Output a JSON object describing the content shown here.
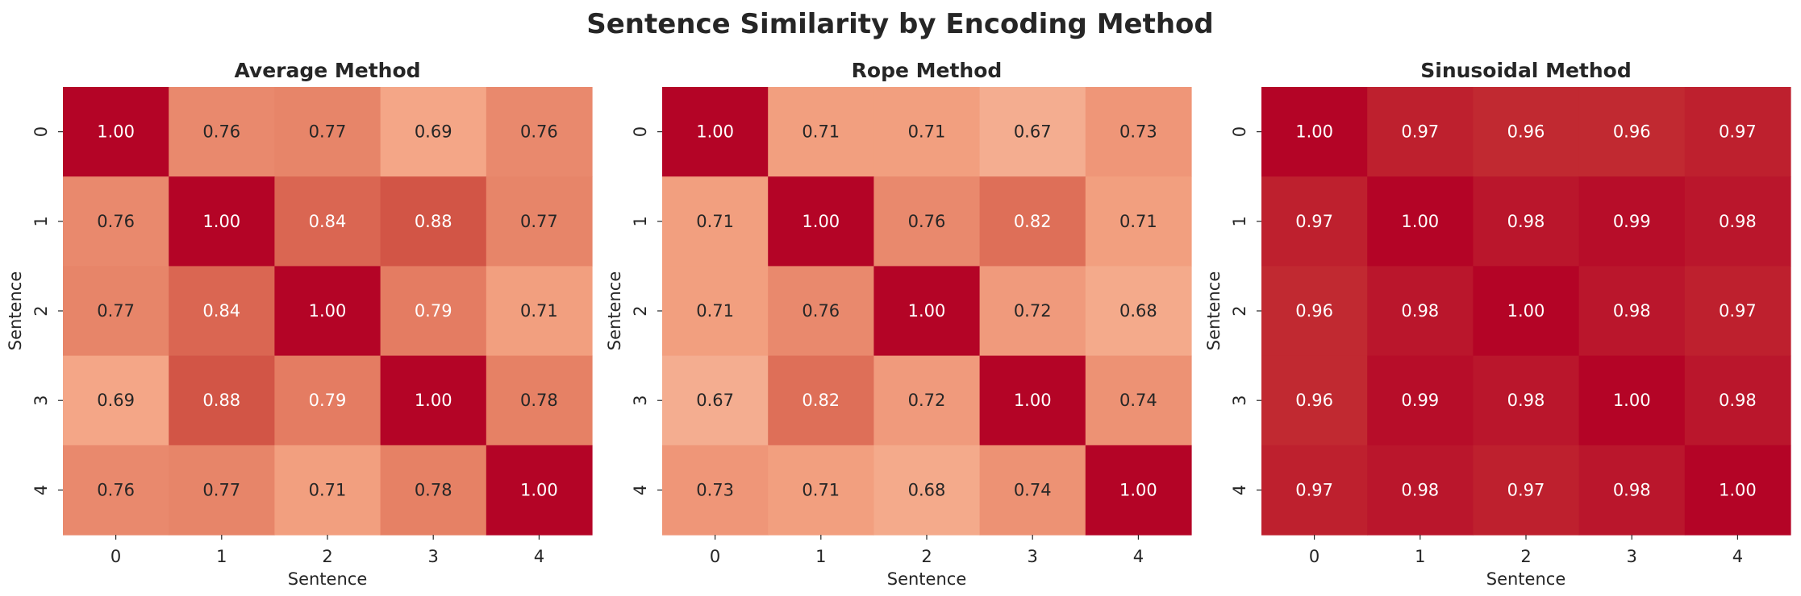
{
  "figure": {
    "title": "Sentence Similarity by Encoding Method"
  },
  "chart_data": [
    {
      "type": "heatmap",
      "title": "Average Method",
      "xlabel": "Sentence",
      "ylabel": "Sentence",
      "x_ticks": [
        "0",
        "1",
        "2",
        "3",
        "4"
      ],
      "y_ticks": [
        "0",
        "1",
        "2",
        "3",
        "4"
      ],
      "colormap": "coolwarm",
      "vmin": 0.0,
      "vmax": 1.0,
      "values": [
        [
          1.0,
          0.76,
          0.77,
          0.69,
          0.76
        ],
        [
          0.76,
          1.0,
          0.84,
          0.88,
          0.77
        ],
        [
          0.77,
          0.84,
          1.0,
          0.79,
          0.71
        ],
        [
          0.69,
          0.88,
          0.79,
          1.0,
          0.78
        ],
        [
          0.76,
          0.77,
          0.71,
          0.78,
          1.0
        ]
      ]
    },
    {
      "type": "heatmap",
      "title": "Rope Method",
      "xlabel": "Sentence",
      "ylabel": "Sentence",
      "x_ticks": [
        "0",
        "1",
        "2",
        "3",
        "4"
      ],
      "y_ticks": [
        "0",
        "1",
        "2",
        "3",
        "4"
      ],
      "colormap": "coolwarm",
      "vmin": 0.0,
      "vmax": 1.0,
      "values": [
        [
          1.0,
          0.71,
          0.71,
          0.67,
          0.73
        ],
        [
          0.71,
          1.0,
          0.76,
          0.82,
          0.71
        ],
        [
          0.71,
          0.76,
          1.0,
          0.72,
          0.68
        ],
        [
          0.67,
          0.82,
          0.72,
          1.0,
          0.74
        ],
        [
          0.73,
          0.71,
          0.68,
          0.74,
          1.0
        ]
      ]
    },
    {
      "type": "heatmap",
      "title": "Sinusoidal Method",
      "xlabel": "Sentence",
      "ylabel": "Sentence",
      "x_ticks": [
        "0",
        "1",
        "2",
        "3",
        "4"
      ],
      "y_ticks": [
        "0",
        "1",
        "2",
        "3",
        "4"
      ],
      "colormap": "coolwarm",
      "vmin": 0.0,
      "vmax": 1.0,
      "values": [
        [
          1.0,
          0.97,
          0.96,
          0.96,
          0.97
        ],
        [
          0.97,
          1.0,
          0.98,
          0.99,
          0.98
        ],
        [
          0.96,
          0.98,
          1.0,
          0.98,
          0.97
        ],
        [
          0.96,
          0.99,
          0.98,
          1.0,
          0.98
        ],
        [
          0.97,
          0.98,
          0.97,
          0.98,
          1.0
        ]
      ]
    }
  ]
}
